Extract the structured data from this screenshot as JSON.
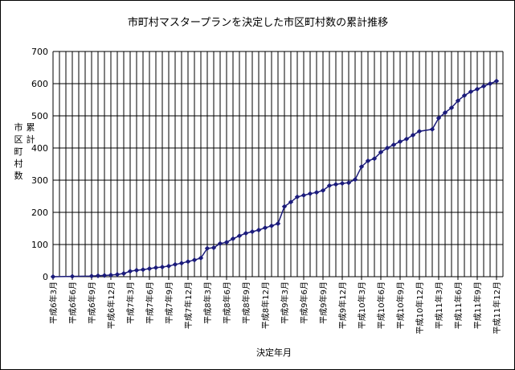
{
  "chart_data": {
    "type": "line",
    "title": "市町村マスタープランを決定した市区町村数の累計推移",
    "xlabel": "決定年月",
    "ylabel": "累計市区町村数",
    "ylabel_chars": [
      "累",
      "計",
      "市",
      "区",
      "町",
      "村",
      "数"
    ],
    "ylim": [
      0,
      700
    ],
    "yticks": [
      0,
      100,
      200,
      300,
      400,
      500,
      600,
      700
    ],
    "grid": true,
    "legend": "none",
    "colors": {
      "line": "#1b1b7a",
      "marker": "#1b1b7a",
      "grid": "#000000"
    },
    "x_tick_labels": [
      "平成6年3月",
      "平成6年6月",
      "平成6年9月",
      "平成6年12月",
      "平成7年3月",
      "平成7年6月",
      "平成7年9月",
      "平成7年12月",
      "平成8年3月",
      "平成8年6月",
      "平成8年9月",
      "平成8年12月",
      "平成9年3月",
      "平成9年6月",
      "平成9年9月",
      "平成9年12月",
      "平成10年3月",
      "平成10年6月",
      "平成10年9月",
      "平成10年12月",
      "平成11年3月",
      "平成11年6月",
      "平成11年9月",
      "平成11年12月"
    ],
    "x": [
      "平成6年3月",
      "平成6年6月",
      "平成6年9月",
      "平成6年10月",
      "平成6年11月",
      "平成6年12月",
      "平成7年1月",
      "平成7年2月",
      "平成7年3月",
      "平成7年4月",
      "平成7年5月",
      "平成7年6月",
      "平成7年7月",
      "平成7年8月",
      "平成7年9月",
      "平成7年10月",
      "平成7年11月",
      "平成7年12月",
      "平成8年1月",
      "平成8年2月",
      "平成8年3月",
      "平成8年4月",
      "平成8年5月",
      "平成8年6月",
      "平成8年7月",
      "平成8年8月",
      "平成8年9月",
      "平成8年10月",
      "平成8年11月",
      "平成8年12月",
      "平成9年1月",
      "平成9年2月",
      "平成9年3月",
      "平成9年4月",
      "平成9年5月",
      "平成9年6月",
      "平成9年7月",
      "平成9年8月",
      "平成9年9月",
      "平成9年10月",
      "平成9年11月",
      "平成9年12月",
      "平成10年1月",
      "平成10年2月",
      "平成10年3月",
      "平成10年4月",
      "平成10年5月",
      "平成10年6月",
      "平成10年7月",
      "平成10年8月",
      "平成10年9月",
      "平成10年10月",
      "平成10年11月",
      "平成10年12月",
      "平成11年2月",
      "平成11年3月",
      "平成11年4月",
      "平成11年5月",
      "平成11年6月",
      "平成11年7月",
      "平成11年8月",
      "平成11年9月",
      "平成11年10月",
      "平成11年11月",
      "平成11年12月"
    ],
    "values": [
      0,
      1,
      2,
      3,
      4,
      5,
      7,
      10,
      17,
      20,
      22,
      25,
      28,
      30,
      33,
      38,
      42,
      47,
      52,
      58,
      88,
      90,
      103,
      107,
      118,
      127,
      135,
      140,
      145,
      152,
      158,
      165,
      218,
      232,
      248,
      253,
      258,
      262,
      268,
      283,
      287,
      290,
      292,
      302,
      342,
      360,
      367,
      387,
      400,
      410,
      420,
      428,
      440,
      452,
      458,
      493,
      510,
      525,
      547,
      563,
      575,
      583,
      592,
      600,
      608
    ]
  }
}
